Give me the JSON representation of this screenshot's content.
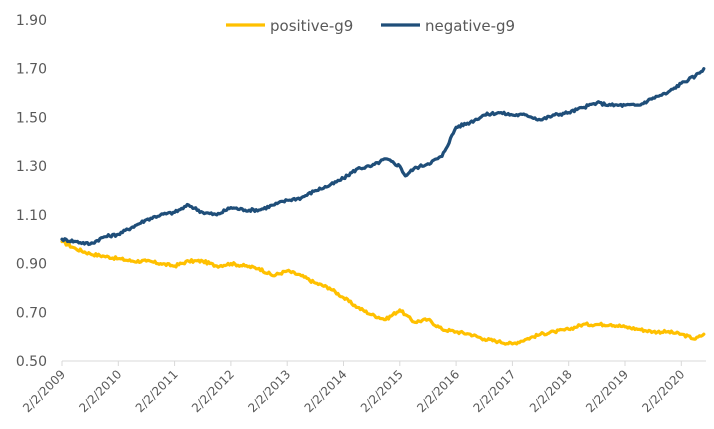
{
  "chart_data": {
    "type": "line",
    "title": "",
    "xlabel": "",
    "ylabel": "",
    "ylim": [
      0.5,
      1.9
    ],
    "yticks": [
      "0.50",
      "0.70",
      "0.90",
      "1.10",
      "1.30",
      "1.50",
      "1.70",
      "1.90"
    ],
    "ytick_values": [
      0.5,
      0.7,
      0.9,
      1.1,
      1.3,
      1.5,
      1.7,
      1.9
    ],
    "xticks": [
      "2/2/2009",
      "2/2/2010",
      "2/2/2011",
      "2/2/2012",
      "2/2/2013",
      "2/2/2014",
      "2/2/2015",
      "2/2/2016",
      "2/2/2017",
      "2/2/2018",
      "2/2/2019",
      "2/2/2020"
    ],
    "xlim_years": [
      2009.0,
      2020.45
    ],
    "grid": false,
    "legend_position": "top-center",
    "x": [
      2009.0,
      2009.25,
      2009.5,
      2009.75,
      2010.0,
      2010.25,
      2010.5,
      2010.75,
      2011.0,
      2011.25,
      2011.5,
      2011.75,
      2012.0,
      2012.25,
      2012.5,
      2012.75,
      2013.0,
      2013.25,
      2013.5,
      2013.75,
      2014.0,
      2014.25,
      2014.5,
      2014.75,
      2015.0,
      2015.1,
      2015.25,
      2015.5,
      2015.75,
      2016.0,
      2016.25,
      2016.5,
      2016.75,
      2017.0,
      2017.25,
      2017.5,
      2017.75,
      2018.0,
      2018.25,
      2018.5,
      2018.75,
      2019.0,
      2019.25,
      2019.5,
      2019.75,
      2020.0,
      2020.25,
      2020.4
    ],
    "series": [
      {
        "name": "positive-g9",
        "color": "#FFC000",
        "values": [
          0.99,
          0.96,
          0.94,
          0.93,
          0.92,
          0.91,
          0.91,
          0.9,
          0.89,
          0.91,
          0.91,
          0.89,
          0.9,
          0.89,
          0.88,
          0.85,
          0.87,
          0.85,
          0.82,
          0.8,
          0.76,
          0.72,
          0.69,
          0.67,
          0.71,
          0.69,
          0.66,
          0.67,
          0.63,
          0.62,
          0.61,
          0.59,
          0.58,
          0.57,
          0.59,
          0.61,
          0.62,
          0.63,
          0.65,
          0.65,
          0.65,
          0.64,
          0.63,
          0.62,
          0.62,
          0.61,
          0.59,
          0.61
        ]
      },
      {
        "name": "negative-g9",
        "color": "#1F4E79",
        "values": [
          1.0,
          0.99,
          0.98,
          1.01,
          1.02,
          1.05,
          1.08,
          1.1,
          1.11,
          1.14,
          1.11,
          1.1,
          1.13,
          1.12,
          1.12,
          1.14,
          1.16,
          1.17,
          1.2,
          1.22,
          1.25,
          1.29,
          1.3,
          1.33,
          1.3,
          1.26,
          1.29,
          1.31,
          1.34,
          1.46,
          1.48,
          1.51,
          1.52,
          1.51,
          1.51,
          1.49,
          1.51,
          1.52,
          1.54,
          1.56,
          1.55,
          1.55,
          1.55,
          1.58,
          1.6,
          1.64,
          1.67,
          1.7
        ]
      }
    ],
    "axis_color": "#D9D9D9"
  }
}
